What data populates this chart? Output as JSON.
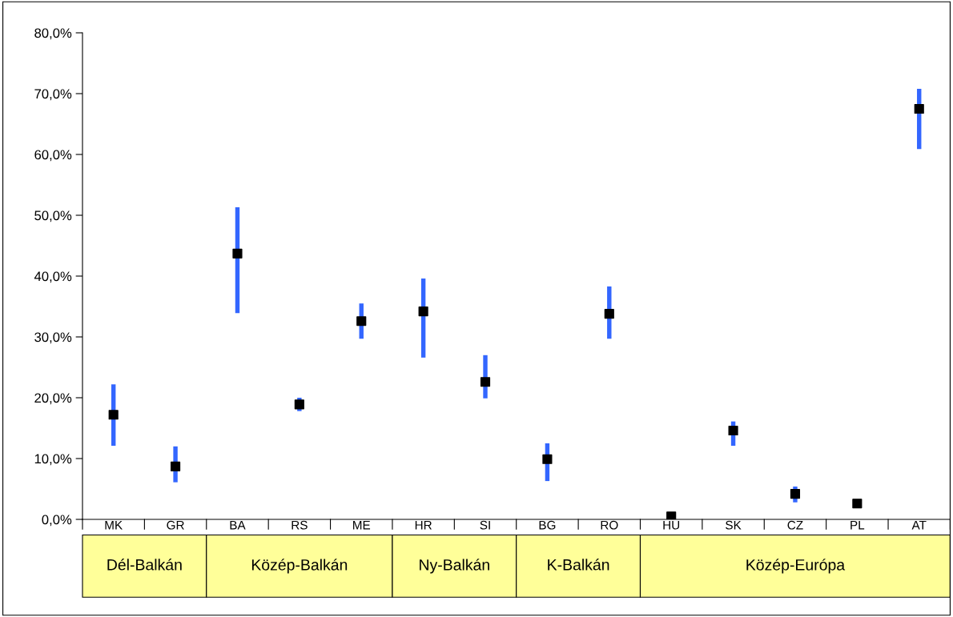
{
  "chart_data": {
    "type": "scatter",
    "categories": [
      "MK",
      "GR",
      "BA",
      "RS",
      "ME",
      "HR",
      "SI",
      "BG",
      "RO",
      "HU",
      "SK",
      "CZ",
      "PL",
      "AT"
    ],
    "series": [
      {
        "type": "bar",
        "color": "#3366ff",
        "base": [
          12.1,
          6.1,
          33.9,
          17.8,
          29.7,
          26.6,
          19.9,
          6.3,
          29.7,
          null,
          12.1,
          2.8,
          null,
          60.9
        ],
        "values": [
          10.1,
          5.9,
          17.4,
          2.2,
          5.8,
          13.0,
          7.1,
          6.2,
          8.6,
          null,
          4.0,
          2.6,
          null,
          9.9
        ]
      },
      {
        "color": "#000000",
        "values": [
          17.2,
          8.7,
          43.7,
          18.9,
          32.6,
          34.2,
          22.6,
          9.9,
          33.8,
          0.5,
          14.6,
          4.2,
          2.6,
          67.5
        ]
      }
    ],
    "marker": "square",
    "ylim": [
      0,
      80
    ],
    "yticks": [
      {
        "value": 0,
        "label": "0,0%"
      },
      {
        "value": 10,
        "label": "10,0%"
      },
      {
        "value": 20,
        "label": "20,0%"
      },
      {
        "value": 30,
        "label": "30,0%"
      },
      {
        "value": 40,
        "label": "40,0%"
      },
      {
        "value": 50,
        "label": "50,0%"
      },
      {
        "value": 60,
        "label": "60,0%"
      },
      {
        "value": 70,
        "label": "70,0%"
      },
      {
        "value": 80,
        "label": "80,0%"
      }
    ],
    "annotations": [
      "Dél-Balkán",
      "Közép-Balkán",
      "Ny-Balkán",
      "K-Balkán",
      "Közép-Európa"
    ]
  }
}
